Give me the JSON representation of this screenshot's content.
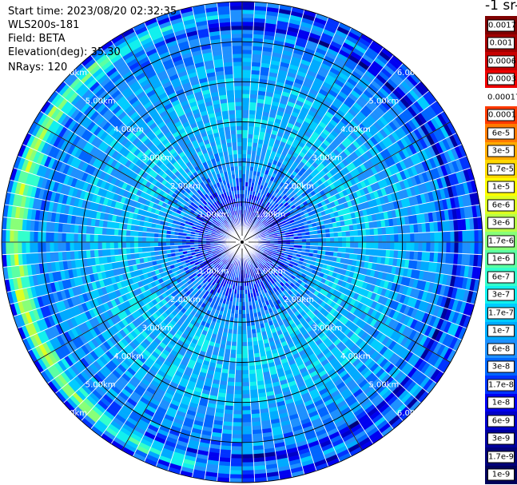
{
  "info": {
    "start_time": "Start time: 2023/08/20 02:32:35",
    "instrument": "WLS200s-181",
    "field": "Field: BETA",
    "elevation": "Elevation(deg): 35.30",
    "nrays": "NRays: 120"
  },
  "colorbar": {
    "unit": "-1 sr-1",
    "labels": [
      "0.0017",
      "0.001",
      "0.0006",
      "0.0003",
      "0.00017",
      "0.0001",
      "6e-5",
      "3e-5",
      "1.7e-5",
      "1e-5",
      "6e-6",
      "3e-6",
      "1.7e-6",
      "1e-6",
      "6e-7",
      "3e-7",
      "1.7e-7",
      "1e-7",
      "6e-8",
      "3e-8",
      "1.7e-8",
      "1e-8",
      "6e-9",
      "3e-9",
      "1.7e-9",
      "1e-9"
    ],
    "colors": [
      "#7f0000",
      "#a00000",
      "#c80000",
      "#ee0000",
      "#ffffff",
      "#ff3a00",
      "#ff7a00",
      "#ffaa00",
      "#ffd800",
      "#ffff00",
      "#ddff22",
      "#b8ff48",
      "#88ff78",
      "#5cffa2",
      "#33ffcc",
      "#11f0ee",
      "#00ccff",
      "#00aaff",
      "#1e90ff",
      "#0066ff",
      "#0033ff",
      "#0000f0",
      "#0000c8",
      "#00009c",
      "#000078",
      "#00005a"
    ],
    "plain_labels": [
      4
    ]
  },
  "chart_data": {
    "type": "heatmap",
    "projection": "polar-ppi",
    "field": "BETA",
    "elevation_deg": 35.3,
    "n_rays": 120,
    "range_unit": "km",
    "range_max_km": 6.0,
    "range_rings_km": [
      1.0,
      2.0,
      3.0,
      4.0,
      5.0,
      6.0
    ],
    "range_ring_labels": [
      "1.00km",
      "2.00km",
      "3.00km",
      "4.00km",
      "5.00km",
      "6.00km"
    ],
    "radial_lines_deg": [
      0,
      30,
      60,
      90,
      120,
      150,
      180,
      210,
      240,
      270,
      300,
      330
    ],
    "value_scale": "log",
    "value_range": [
      1e-09,
      0.0017
    ],
    "radial_profile": [
      {
        "range_km": 0.0,
        "beta": 1e-08
      },
      {
        "range_km": 1.0,
        "beta": 2e-08
      },
      {
        "range_km": 1.6,
        "beta": 6e-08
      },
      {
        "range_km": 2.5,
        "beta": 1.7e-07
      },
      {
        "range_km": 3.5,
        "beta": 1.7e-07
      },
      {
        "range_km": 4.5,
        "beta": 1e-07
      },
      {
        "range_km": 5.3,
        "beta": 6e-08
      },
      {
        "range_km": 5.7,
        "beta": 3e-06
      },
      {
        "range_km": 6.0,
        "beta": 1e-08
      }
    ]
  }
}
